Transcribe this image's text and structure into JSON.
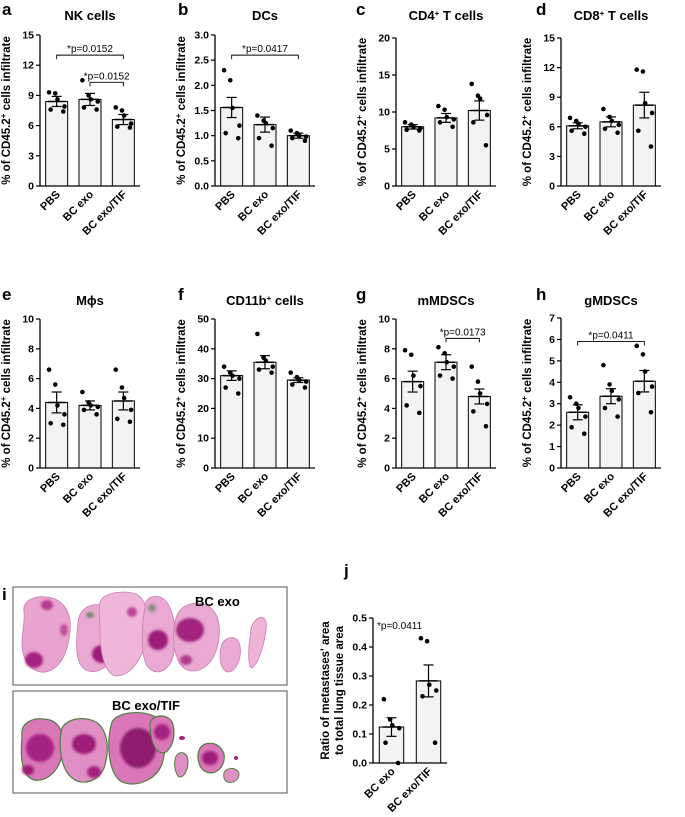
{
  "colors": {
    "bar_fill": "#f3f3f3",
    "axis": "#000000",
    "tissue_pink": "#e08fc4",
    "tissue_magenta": "#a4207f",
    "tissue_green": "#4f7d42"
  },
  "chart_data": [
    {
      "id": "a",
      "panel_label": "a",
      "type": "bar",
      "title": "NK cells",
      "ylabel": "% of CD45.2+ cells infiltrate",
      "ylabel_sup": "+",
      "ylim": [
        0,
        15
      ],
      "ticks": [
        "0",
        "3",
        "6",
        "9",
        "12",
        "15"
      ],
      "categories": [
        "PBS",
        "BC exo",
        "BC exo/TIF"
      ],
      "values": [
        8.4,
        8.6,
        6.6
      ],
      "sem": [
        0.5,
        0.6,
        0.5
      ],
      "points": [
        [
          9.3,
          9.2,
          8.6,
          7.9,
          7.6,
          7.4
        ],
        [
          10.5,
          9.0,
          8.6,
          8.4,
          7.8,
          7.6
        ],
        [
          7.8,
          7.5,
          7.0,
          6.2,
          5.9,
          5.8
        ]
      ],
      "significance": [
        {
          "from": 0,
          "to": 2,
          "y": 13.0,
          "text": "*p=0.0152"
        },
        {
          "from": 1,
          "to": 2,
          "y": 10.3,
          "text": "*p=0.0152"
        }
      ]
    },
    {
      "id": "b",
      "panel_label": "b",
      "type": "bar",
      "title": "DCs",
      "ylabel": "% of CD45.2+ cells infiltrate",
      "ylabel_sup": "+",
      "ylim": [
        0,
        3.0
      ],
      "ticks": [
        "0.0",
        "0.5",
        "1.0",
        "1.5",
        "2.0",
        "2.5",
        "3.0"
      ],
      "categories": [
        "PBS",
        "BC exo",
        "BC exo/TIF"
      ],
      "values": [
        1.56,
        1.22,
        1.0
      ],
      "sem": [
        0.2,
        0.15,
        0.05
      ],
      "points": [
        [
          2.3,
          2.1,
          1.55,
          1.2,
          1.05,
          0.95
        ],
        [
          1.4,
          1.3,
          1.25,
          1.15,
          0.95,
          0.8
        ],
        [
          1.1,
          1.05,
          1.0,
          0.98,
          0.95,
          0.9
        ]
      ],
      "significance": [
        {
          "from": 0,
          "to": 2,
          "y": 2.6,
          "text": "*p=0.0417"
        }
      ]
    },
    {
      "id": "c",
      "panel_label": "c",
      "type": "bar",
      "title": "CD4+ T cells",
      "title_sup": "+",
      "ylabel": "% of CD45.2+ cells infiltrate",
      "ylabel_sup": "+",
      "ylim": [
        0,
        20
      ],
      "ticks": [
        "0",
        "5",
        "10",
        "15",
        "20"
      ],
      "categories": [
        "PBS",
        "BC exo",
        "BC exo/TIF"
      ],
      "values": [
        8.0,
        9.2,
        10.2
      ],
      "sem": [
        0.3,
        0.6,
        1.3
      ],
      "points": [
        [
          8.6,
          8.3,
          8.0,
          7.8,
          7.6,
          7.5
        ],
        [
          10.8,
          10.3,
          9.3,
          9.0,
          8.6,
          8.0
        ],
        [
          13.8,
          12.2,
          11.8,
          9.6,
          8.6,
          5.5
        ]
      ],
      "significance": []
    },
    {
      "id": "d",
      "panel_label": "d",
      "type": "bar",
      "title": "CD8+ T cells",
      "title_sup": "+",
      "ylabel": "% of CD45.2+ cells infiltrate",
      "ylabel_sup": "+",
      "ylim": [
        0,
        15
      ],
      "ticks": [
        "0",
        "3",
        "6",
        "9",
        "12",
        "15"
      ],
      "categories": [
        "PBS",
        "BC exo",
        "BC exo/TIF"
      ],
      "values": [
        6.1,
        6.5,
        8.2
      ],
      "sem": [
        0.3,
        0.5,
        1.3
      ],
      "points": [
        [
          6.9,
          6.6,
          6.3,
          6.0,
          5.6,
          5.3
        ],
        [
          7.8,
          7.0,
          6.6,
          6.2,
          5.8,
          5.4
        ],
        [
          11.8,
          11.6,
          8.4,
          7.4,
          5.6,
          4.0
        ]
      ],
      "significance": []
    },
    {
      "id": "e",
      "panel_label": "e",
      "type": "bar",
      "title": "Mϕs",
      "ylabel": "% of CD45.2+ cells infiltrate",
      "ylabel_sup": "+",
      "ylim": [
        0,
        10
      ],
      "ticks": [
        "0",
        "2",
        "4",
        "6",
        "8",
        "10"
      ],
      "categories": [
        "PBS",
        "BC exo",
        "BC exo/TIF"
      ],
      "values": [
        4.4,
        4.2,
        4.5
      ],
      "sem": [
        0.7,
        0.3,
        0.6
      ],
      "points": [
        [
          6.6,
          5.6,
          4.2,
          3.6,
          3.0,
          2.9
        ],
        [
          5.1,
          4.4,
          4.2,
          4.1,
          3.9,
          3.6
        ],
        [
          6.6,
          5.4,
          4.7,
          3.9,
          3.3,
          3.1
        ]
      ],
      "significance": []
    },
    {
      "id": "f",
      "panel_label": "f",
      "type": "bar",
      "title": "CD11b+ cells",
      "title_sup": "+",
      "ylabel": "% of CD45.2+ cells infiltrate",
      "ylabel_sup": "+",
      "ylim": [
        0,
        50
      ],
      "ticks": [
        "0",
        "10",
        "20",
        "30",
        "40",
        "50"
      ],
      "categories": [
        "PBS",
        "BC exo",
        "BC exo/TIF"
      ],
      "values": [
        31,
        35.5,
        29.5
      ],
      "sem": [
        1.6,
        2.2,
        0.8
      ],
      "points": [
        [
          34,
          32,
          31,
          30,
          27,
          25
        ],
        [
          45,
          37,
          36,
          34,
          33,
          32
        ],
        [
          32,
          30.5,
          29.5,
          29,
          28,
          27
        ]
      ],
      "significance": []
    },
    {
      "id": "g",
      "panel_label": "g",
      "type": "bar",
      "title": "mMDSCs",
      "ylabel": "% of CD45.2+ cells infiltrate",
      "ylabel_sup": "+",
      "ylim": [
        0,
        10
      ],
      "ticks": [
        "0",
        "2",
        "4",
        "6",
        "8",
        "10"
      ],
      "categories": [
        "PBS",
        "BC exo",
        "BC exo/TIF"
      ],
      "values": [
        5.8,
        7.1,
        4.8
      ],
      "sem": [
        0.7,
        0.5,
        0.5
      ],
      "points": [
        [
          7.9,
          7.6,
          6.2,
          5.5,
          4.2,
          3.7
        ],
        [
          8.1,
          7.7,
          7.1,
          6.8,
          6.2,
          6.0
        ],
        [
          6.8,
          5.8,
          5.0,
          4.3,
          3.8,
          2.8
        ]
      ],
      "significance": [
        {
          "from": 1,
          "to": 2,
          "y": 8.7,
          "text": "*p=0.0173"
        }
      ]
    },
    {
      "id": "h",
      "panel_label": "h",
      "type": "bar",
      "title": "gMDSCs",
      "ylabel": "% of CD45.2+ cells infiltrate",
      "ylabel_sup": "+",
      "ylim": [
        0,
        7
      ],
      "ticks": [
        "0",
        "1",
        "2",
        "3",
        "4",
        "5",
        "6",
        "7"
      ],
      "categories": [
        "PBS",
        "BC exo",
        "BC exo/TIF"
      ],
      "values": [
        2.6,
        3.35,
        4.05
      ],
      "sem": [
        0.35,
        0.35,
        0.5
      ],
      "points": [
        [
          3.3,
          3.0,
          2.8,
          2.4,
          1.9,
          1.6
        ],
        [
          4.8,
          3.9,
          3.6,
          3.2,
          2.8,
          2.4
        ],
        [
          5.7,
          5.3,
          4.5,
          3.8,
          3.5,
          2.6
        ]
      ],
      "significance": [
        {
          "from": 0,
          "to": 2,
          "y": 5.9,
          "text": "*p=0.0411"
        }
      ]
    },
    {
      "id": "j",
      "panel_label": "j",
      "type": "bar",
      "title": "",
      "ylabel": [
        "Ratio of metastases' area",
        "to total lung tissue area"
      ],
      "ylim": [
        0,
        0.5
      ],
      "ticks": [
        "0.0",
        "0.1",
        "0.2",
        "0.3",
        "0.4",
        "0.5"
      ],
      "categories": [
        "BC exo",
        "BC exo/TIF"
      ],
      "values": [
        0.124,
        0.283
      ],
      "sem": [
        0.032,
        0.055
      ],
      "points": [
        [
          0.22,
          0.15,
          0.13,
          0.12,
          0.07,
          0.0
        ],
        [
          0.43,
          0.42,
          0.27,
          0.25,
          0.23,
          0.07
        ]
      ],
      "significance": [],
      "annotation": "*p=0.0411"
    }
  ],
  "panel_i": {
    "panel_label": "i",
    "images": [
      {
        "label": "BC exo"
      },
      {
        "label": "BC exo/TIF"
      }
    ]
  }
}
